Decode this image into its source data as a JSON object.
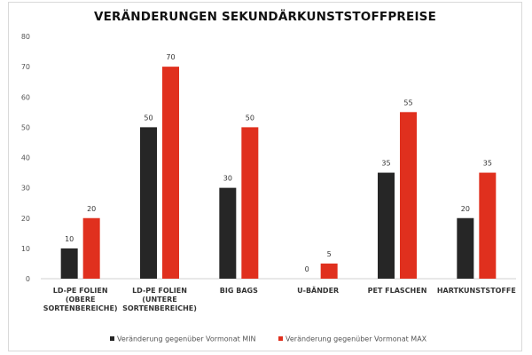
{
  "chart_data": {
    "type": "bar",
    "title": "VERÄNDERUNGEN SEKUNDÄRKUNSTSTOFFPREISE",
    "categories": [
      [
        "LD-PE FOLIEN",
        "(OBERE",
        "SORTENBEREICHE)"
      ],
      [
        "LD-PE FOLIEN",
        "(UNTERE",
        "SORTENBEREICHE)"
      ],
      [
        "BIG BAGS"
      ],
      [
        "U-BÄNDER"
      ],
      [
        "PET FLASCHEN"
      ],
      [
        "HARTKUNSTSTOFFE"
      ]
    ],
    "series": [
      {
        "name": "Veränderung gegenüber Vormonat MIN",
        "color": "#262626",
        "values": [
          10,
          50,
          30,
          0,
          35,
          20
        ]
      },
      {
        "name": "Veränderung gegenüber Vormonat MAX",
        "color": "#e0301e",
        "values": [
          20,
          70,
          50,
          5,
          55,
          35
        ]
      }
    ],
    "ylim": [
      0,
      80
    ],
    "yticks": [
      0,
      10,
      20,
      30,
      40,
      50,
      60,
      70,
      80
    ],
    "grid": false,
    "legend": "bottom"
  }
}
